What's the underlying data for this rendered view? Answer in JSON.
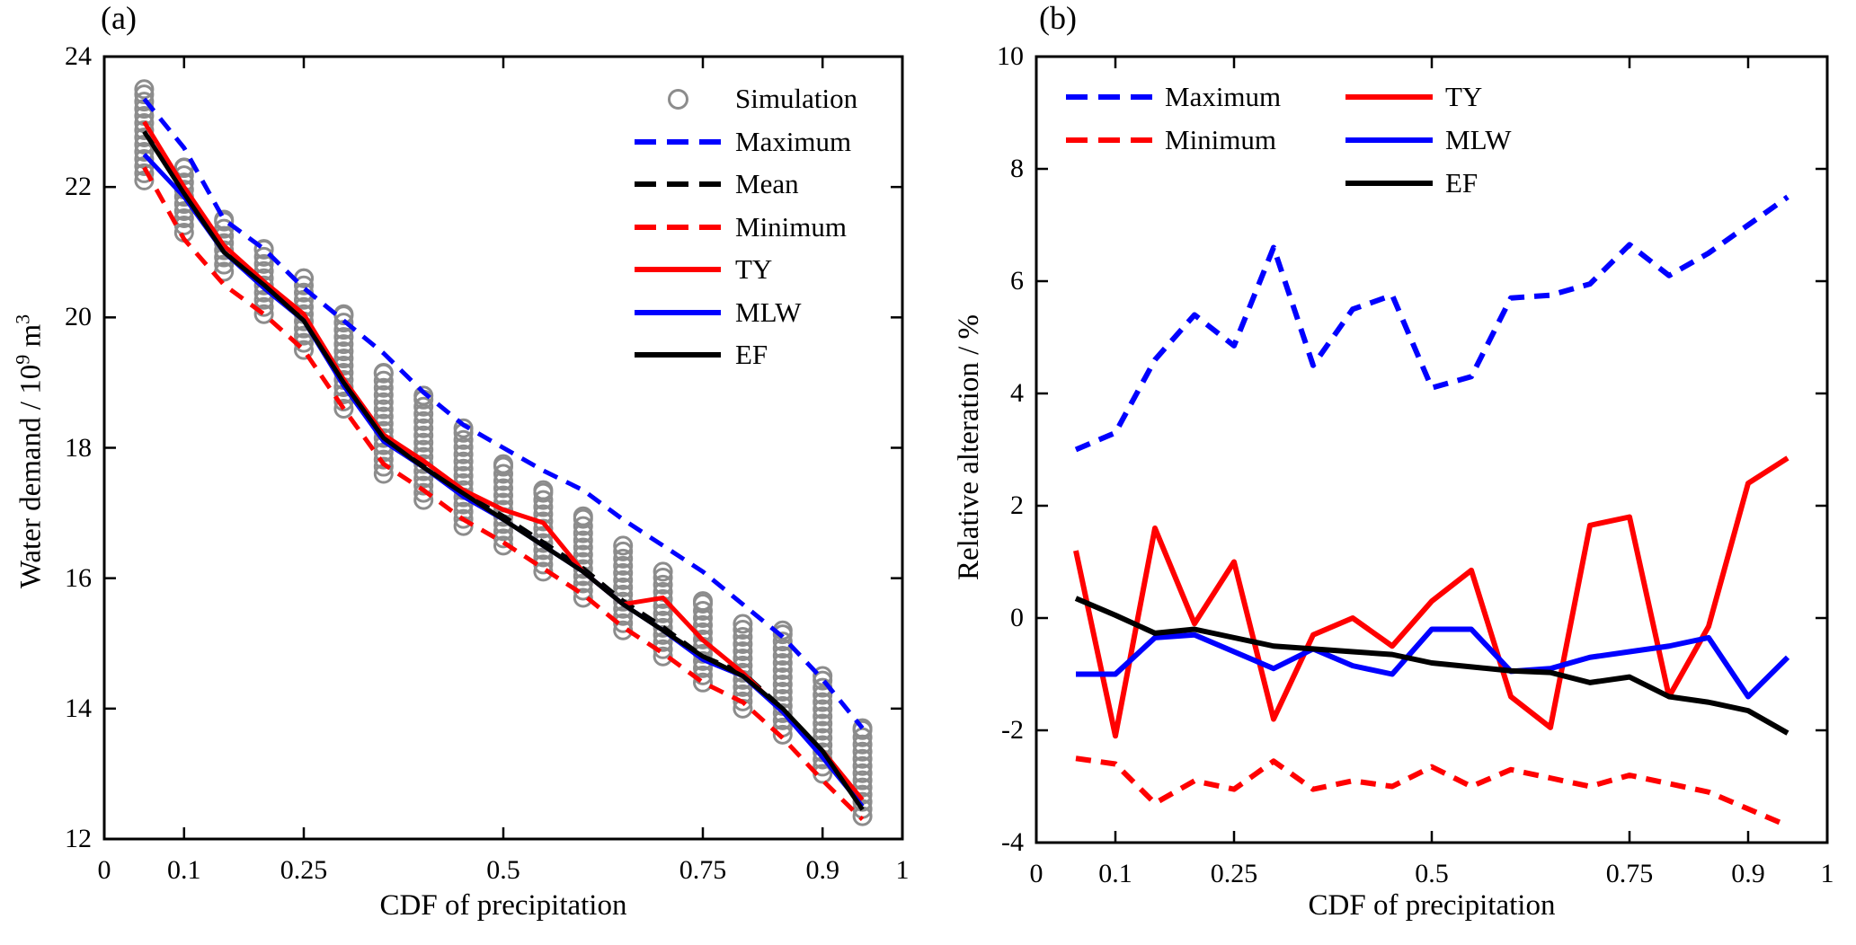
{
  "figure": {
    "background": "#ffffff",
    "colors": {
      "blue": "#0000ff",
      "red": "#ff0000",
      "black": "#000000",
      "gray": "#8c8c8c"
    }
  },
  "chart_data": [
    {
      "type": "line",
      "panel_label": "(a)",
      "xlabel": "CDF of precipitation",
      "ylabel_text": "Water demand / 10",
      "ylabel_sup1": "9",
      "ylabel_mid": " m",
      "ylabel_sup2": "3",
      "xlim": [
        0,
        1
      ],
      "ylim": [
        12,
        24
      ],
      "xticks": [
        0,
        0.1,
        0.25,
        0.5,
        0.75,
        0.9,
        1
      ],
      "xtick_labels": [
        "0",
        "0.1",
        "0.25",
        "0.5",
        "0.75",
        "0.9",
        "1"
      ],
      "yticks": [
        24,
        22,
        20,
        18,
        16,
        14,
        12
      ],
      "ytick_labels": [
        "24",
        "22",
        "20",
        "18",
        "16",
        "14",
        "12"
      ],
      "grid": false,
      "legend_position": "top-right-inside",
      "legend": [
        {
          "label": "Simulation",
          "marker": "circle",
          "color": "#8c8c8c"
        },
        {
          "label": "Maximum",
          "marker": "dashed",
          "color": "#0000ff"
        },
        {
          "label": "Mean",
          "marker": "dashed",
          "color": "#000000"
        },
        {
          "label": "Minimum",
          "marker": "dashed",
          "color": "#ff0000"
        },
        {
          "label": "TY",
          "marker": "solid",
          "color": "#ff0000"
        },
        {
          "label": "MLW",
          "marker": "solid",
          "color": "#0000ff"
        },
        {
          "label": "EF",
          "marker": "solid",
          "color": "#000000"
        }
      ],
      "x": [
        0.05,
        0.1,
        0.15,
        0.2,
        0.25,
        0.3,
        0.35,
        0.4,
        0.45,
        0.5,
        0.55,
        0.6,
        0.65,
        0.7,
        0.75,
        0.8,
        0.85,
        0.9,
        0.95
      ],
      "simulation_columns": {
        "top": [
          23.5,
          22.3,
          21.5,
          21.05,
          20.6,
          20.05,
          19.15,
          18.8,
          18.3,
          17.75,
          17.35,
          16.95,
          16.5,
          16.1,
          15.65,
          15.3,
          15.2,
          14.5,
          13.7
        ],
        "bottom": [
          22.1,
          21.3,
          20.7,
          20.05,
          19.5,
          18.6,
          17.6,
          17.2,
          16.8,
          16.5,
          16.1,
          15.7,
          15.2,
          14.8,
          14.4,
          14.0,
          13.6,
          13.0,
          12.35
        ]
      },
      "series": [
        {
          "name": "Maximum",
          "color": "#0000ff",
          "dashed": true,
          "values": [
            23.35,
            22.6,
            21.5,
            21.05,
            20.45,
            19.95,
            19.45,
            18.85,
            18.35,
            18.0,
            17.65,
            17.35,
            16.9,
            16.5,
            16.1,
            15.6,
            15.1,
            14.45,
            13.7
          ]
        },
        {
          "name": "Mean",
          "color": "#000000",
          "dashed": true,
          "values": [
            22.85,
            21.95,
            21.05,
            20.5,
            20.0,
            19.0,
            18.15,
            17.75,
            17.3,
            16.95,
            16.55,
            16.15,
            15.65,
            15.25,
            14.8,
            14.55,
            14.0,
            13.3,
            12.55
          ]
        },
        {
          "name": "Minimum",
          "color": "#ff0000",
          "dashed": true,
          "values": [
            22.3,
            21.2,
            20.5,
            20.05,
            19.5,
            18.6,
            17.75,
            17.35,
            16.9,
            16.55,
            16.15,
            15.75,
            15.25,
            14.85,
            14.4,
            14.1,
            13.55,
            12.9,
            12.3
          ]
        },
        {
          "name": "TY",
          "color": "#ff0000",
          "dashed": false,
          "values": [
            23.0,
            22.0,
            21.1,
            20.55,
            20.05,
            19.05,
            18.2,
            17.8,
            17.35,
            17.05,
            16.85,
            16.1,
            15.6,
            15.7,
            15.05,
            14.55,
            13.95,
            13.35,
            12.6
          ]
        },
        {
          "name": "MLW",
          "color": "#0000ff",
          "dashed": false,
          "values": [
            22.5,
            21.85,
            21.0,
            20.45,
            19.95,
            18.95,
            18.1,
            17.7,
            17.25,
            16.9,
            16.5,
            16.1,
            15.6,
            15.2,
            14.75,
            14.5,
            13.95,
            13.25,
            12.5
          ]
        },
        {
          "name": "EF",
          "color": "#000000",
          "dashed": false,
          "values": [
            22.85,
            21.9,
            21.0,
            20.5,
            19.95,
            19.0,
            18.15,
            17.7,
            17.3,
            16.9,
            16.5,
            16.1,
            15.6,
            15.2,
            14.8,
            14.5,
            14.0,
            13.35,
            12.45
          ]
        }
      ]
    },
    {
      "type": "line",
      "panel_label": "(b)",
      "xlabel": "CDF of precipitation",
      "ylabel_text": "Relative alteration / %",
      "xlim": [
        0,
        1
      ],
      "ylim": [
        -4,
        10
      ],
      "xticks": [
        0,
        0.1,
        0.25,
        0.5,
        0.75,
        0.9,
        1
      ],
      "xtick_labels": [
        "0",
        "0.1",
        "0.25",
        "0.5",
        "0.75",
        "0.9",
        "1"
      ],
      "yticks": [
        10,
        8,
        6,
        4,
        2,
        0,
        -2,
        -4
      ],
      "ytick_labels": [
        "10",
        "8",
        "6",
        "4",
        "2",
        "0",
        "-2",
        "-4"
      ],
      "grid": false,
      "legend_position": "top-inside-two-columns",
      "legend_col1": [
        {
          "label": "Maximum",
          "marker": "dashed",
          "color": "#0000ff"
        },
        {
          "label": "Minimum",
          "marker": "dashed",
          "color": "#ff0000"
        }
      ],
      "legend_col2": [
        {
          "label": "TY",
          "marker": "solid",
          "color": "#ff0000"
        },
        {
          "label": "MLW",
          "marker": "solid",
          "color": "#0000ff"
        },
        {
          "label": "EF",
          "marker": "solid",
          "color": "#000000"
        }
      ],
      "x": [
        0.05,
        0.1,
        0.15,
        0.2,
        0.25,
        0.3,
        0.35,
        0.4,
        0.45,
        0.5,
        0.55,
        0.6,
        0.65,
        0.7,
        0.75,
        0.8,
        0.85,
        0.9,
        0.95
      ],
      "series": [
        {
          "name": "Maximum",
          "color": "#0000ff",
          "dashed": true,
          "values": [
            3.0,
            3.3,
            4.6,
            5.4,
            4.85,
            6.6,
            4.5,
            5.5,
            5.75,
            4.1,
            4.3,
            5.7,
            5.75,
            5.95,
            6.65,
            6.1,
            6.5,
            7.0,
            7.5
          ]
        },
        {
          "name": "Minimum",
          "color": "#ff0000",
          "dashed": true,
          "values": [
            -2.5,
            -2.6,
            -3.3,
            -2.9,
            -3.05,
            -2.55,
            -3.05,
            -2.9,
            -3.0,
            -2.65,
            -3.0,
            -2.7,
            -2.85,
            -3.0,
            -2.8,
            -2.95,
            -3.1,
            -3.4,
            -3.7
          ]
        },
        {
          "name": "TY",
          "color": "#ff0000",
          "dashed": false,
          "values": [
            1.2,
            -2.1,
            1.6,
            -0.1,
            1.0,
            -1.8,
            -0.3,
            0.0,
            -0.5,
            0.3,
            0.85,
            -1.4,
            -1.95,
            1.65,
            1.8,
            -1.4,
            -0.15,
            2.4,
            2.85
          ]
        },
        {
          "name": "MLW",
          "color": "#0000ff",
          "dashed": false,
          "values": [
            -1.0,
            -1.0,
            -0.35,
            -0.3,
            -0.6,
            -0.9,
            -0.55,
            -0.85,
            -1.0,
            -0.2,
            -0.2,
            -0.95,
            -0.9,
            -0.7,
            -0.6,
            -0.5,
            -0.35,
            -1.4,
            -0.7
          ]
        },
        {
          "name": "EF",
          "color": "#000000",
          "dashed": false,
          "values": [
            0.35,
            0.05,
            -0.27,
            -0.2,
            -0.35,
            -0.5,
            -0.55,
            -0.6,
            -0.65,
            -0.8,
            -0.87,
            -0.94,
            -0.97,
            -1.15,
            -1.05,
            -1.4,
            -1.5,
            -1.65,
            -2.05
          ]
        }
      ]
    }
  ]
}
